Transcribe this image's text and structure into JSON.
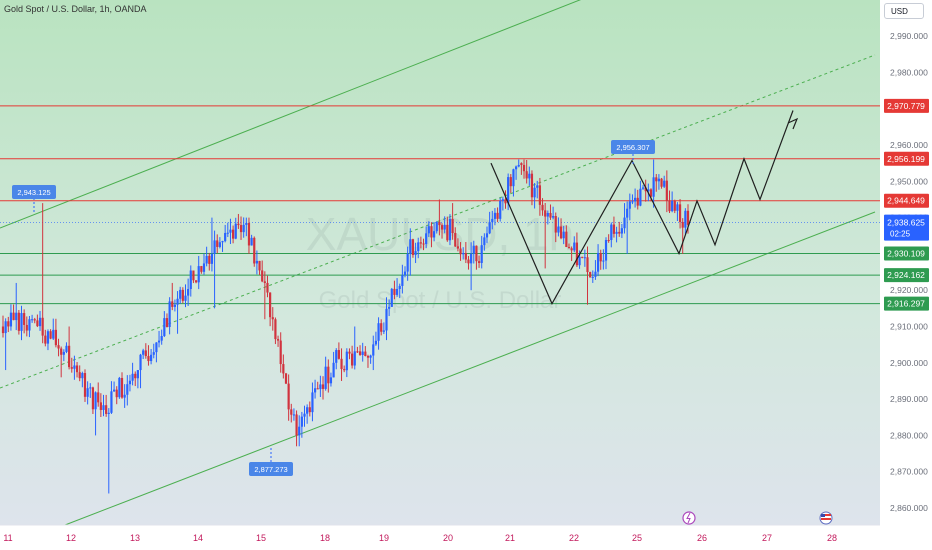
{
  "header": {
    "title": "Gold Spot / U.S. Dollar, 1h, OANDA"
  },
  "toolbar": {
    "currency_label": "USD"
  },
  "watermark": {
    "symbol": "XAUUSD, 1h",
    "name": "Gold Spot / U.S. Dollar"
  },
  "colors": {
    "up": "#2962ff",
    "down": "#d1333e",
    "resistance": "#e53935",
    "support": "#2e9b50",
    "channel": "#4caf50",
    "bg_top": "#b9e3c0",
    "bg_bottom": "#dfe3ee",
    "projection": "#1f1f1f"
  },
  "chart_data": {
    "type": "candlestick",
    "instrument": "Gold Spot / U.S. Dollar",
    "timeframe": "1h",
    "broker": "OANDA",
    "currency": "USD",
    "ylim": [
      2855,
      3000
    ],
    "y_ticks": [
      2860,
      2870,
      2880,
      2890,
      2900,
      2910,
      2920,
      2930,
      2940,
      2950,
      2960,
      2970,
      2980,
      2990
    ],
    "y_tick_labels": [
      "2,860.000",
      "2,870.000",
      "2,880.000",
      "2,890.000",
      "2,900.000",
      "2,910.000",
      "2,920.000",
      "2,930.000",
      "2,940.000",
      "2,950.000",
      "2,960.000",
      "2,970.000",
      "2,980.000",
      "2,990.000"
    ],
    "x_tick_labels": [
      "11",
      "12",
      "13",
      "14",
      "15",
      "18",
      "19",
      "20",
      "21",
      "22",
      "25",
      "26",
      "27",
      "28"
    ],
    "horizontal_levels": [
      {
        "value": 2970.779,
        "label": "2,970.779",
        "kind": "resistance"
      },
      {
        "value": 2956.199,
        "label": "2,956.199",
        "kind": "resistance"
      },
      {
        "value": 2944.649,
        "label": "2,944.649",
        "kind": "resistance"
      },
      {
        "value": 2930.109,
        "label": "2,930.109",
        "kind": "support"
      },
      {
        "value": 2924.162,
        "label": "2,924.162",
        "kind": "support"
      },
      {
        "value": 2916.297,
        "label": "2,916.297",
        "kind": "support"
      }
    ],
    "current_price": {
      "value": 2938.625,
      "label": "2,938.625",
      "countdown": "02:25"
    },
    "callouts": [
      {
        "label": "2,943.125",
        "value": 2943.125
      },
      {
        "label": "2,877.273",
        "value": 2877.273
      },
      {
        "label": "2,956.307",
        "value": 2956.307
      }
    ],
    "segments": [
      {
        "start": 2910,
        "end": 2912,
        "low": 2898,
        "high": 2922,
        "n": 12,
        "seed": 3
      },
      {
        "start": 2912,
        "end": 2903,
        "low": 2896,
        "high": 2944,
        "n": 12,
        "seed": 7
      },
      {
        "start": 2903,
        "end": 2887,
        "low": 2880,
        "high": 2910,
        "n": 14,
        "seed": 11
      },
      {
        "start": 2887,
        "end": 2898,
        "low": 2864,
        "high": 2900,
        "n": 14,
        "seed": 13
      },
      {
        "start": 2898,
        "end": 2916,
        "low": 2893,
        "high": 2922,
        "n": 14,
        "seed": 17
      },
      {
        "start": 2916,
        "end": 2930,
        "low": 2908,
        "high": 2940,
        "n": 14,
        "seed": 19
      },
      {
        "start": 2930,
        "end": 2938,
        "low": 2915,
        "high": 2941,
        "n": 12,
        "seed": 23
      },
      {
        "start": 2938,
        "end": 2922,
        "low": 2912,
        "high": 2940,
        "n": 8,
        "seed": 29
      },
      {
        "start": 2922,
        "end": 2880,
        "low": 2877,
        "high": 2924,
        "n": 12,
        "seed": 31
      },
      {
        "start": 2880,
        "end": 2900,
        "low": 2877,
        "high": 2903,
        "n": 14,
        "seed": 37
      },
      {
        "start": 2900,
        "end": 2902,
        "low": 2895,
        "high": 2910,
        "n": 14,
        "seed": 41
      },
      {
        "start": 2902,
        "end": 2930,
        "low": 2898,
        "high": 2932,
        "n": 14,
        "seed": 43
      },
      {
        "start": 2930,
        "end": 2938,
        "low": 2924,
        "high": 2945,
        "n": 14,
        "seed": 47
      },
      {
        "start": 2938,
        "end": 2928,
        "low": 2920,
        "high": 2944,
        "n": 12,
        "seed": 53
      },
      {
        "start": 2928,
        "end": 2955,
        "low": 2926,
        "high": 2956,
        "n": 16,
        "seed": 59
      },
      {
        "start": 2955,
        "end": 2940,
        "low": 2926,
        "high": 2956,
        "n": 12,
        "seed": 61
      },
      {
        "start": 2940,
        "end": 2925,
        "low": 2916,
        "high": 2943,
        "n": 14,
        "seed": 67
      },
      {
        "start": 2925,
        "end": 2940,
        "low": 2922,
        "high": 2944,
        "n": 14,
        "seed": 71
      },
      {
        "start": 2940,
        "end": 2950,
        "low": 2930,
        "high": 2956,
        "n": 12,
        "seed": 73
      },
      {
        "start": 2950,
        "end": 2938,
        "low": 2930,
        "high": 2953,
        "n": 12,
        "seed": 79
      }
    ]
  }
}
